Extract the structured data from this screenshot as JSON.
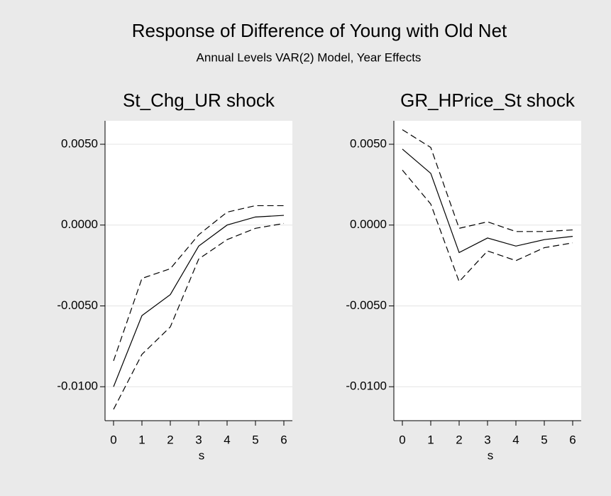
{
  "title": "Response of Difference of Young with Old Net",
  "subtitle": "Annual Levels VAR(2) Model, Year Effects",
  "chart_data": [
    {
      "type": "line",
      "title": "St_Chg_UR shock",
      "x_label": "s",
      "x": [
        0,
        1,
        2,
        3,
        4,
        5,
        6
      ],
      "series": [
        {
          "color": "#000000",
          "dash": false,
          "values": [
            -0.01,
            -0.0056,
            -0.0043,
            -0.0013,
            0.0,
            0.0005,
            0.0006
          ]
        },
        {
          "color": "#000000",
          "dash": true,
          "values": [
            -0.0084,
            -0.0033,
            -0.0027,
            -0.0006,
            0.0008,
            0.0012,
            0.0012
          ]
        },
        {
          "color": "#000000",
          "dash": true,
          "values": [
            -0.0114,
            -0.008,
            -0.0063,
            -0.0021,
            -0.0009,
            -0.0002,
            0.0001
          ]
        }
      ],
      "xlim": [
        -0.3,
        6.3
      ],
      "xticks": [
        0,
        1,
        2,
        3,
        4,
        5,
        6
      ],
      "ylim": [
        -0.0121,
        0.00645
      ],
      "yticks": [
        {
          "value": -0.01,
          "label": "-0.0100"
        },
        {
          "value": -0.005,
          "label": "-0.0050"
        },
        {
          "value": 0,
          "label": "0.0000"
        },
        {
          "value": 0.005,
          "label": "0.0050"
        }
      ],
      "grid": true
    },
    {
      "type": "line",
      "title": "GR_HPrice_St shock",
      "x_label": "s",
      "x": [
        0,
        1,
        2,
        3,
        4,
        5,
        6
      ],
      "series": [
        {
          "color": "#000000",
          "dash": false,
          "values": [
            0.0047,
            0.0032,
            -0.0017,
            -0.0008,
            -0.0013,
            -0.0009,
            -0.0007
          ]
        },
        {
          "color": "#000000",
          "dash": true,
          "values": [
            0.0059,
            0.0048,
            -0.0002,
            0.0002,
            -0.0004,
            -0.0004,
            -0.0003
          ]
        },
        {
          "color": "#000000",
          "dash": true,
          "values": [
            0.0034,
            0.0013,
            -0.0035,
            -0.0016,
            -0.0022,
            -0.0014,
            -0.0011
          ]
        }
      ],
      "xlim": [
        -0.3,
        6.3
      ],
      "xticks": [
        0,
        1,
        2,
        3,
        4,
        5,
        6
      ],
      "ylim": [
        -0.0121,
        0.00645
      ],
      "yticks": [
        {
          "value": -0.01,
          "label": "-0.0100"
        },
        {
          "value": -0.005,
          "label": "-0.0050"
        },
        {
          "value": 0,
          "label": "0.0000"
        },
        {
          "value": 0.005,
          "label": "0.0050"
        }
      ],
      "grid": true
    }
  ]
}
